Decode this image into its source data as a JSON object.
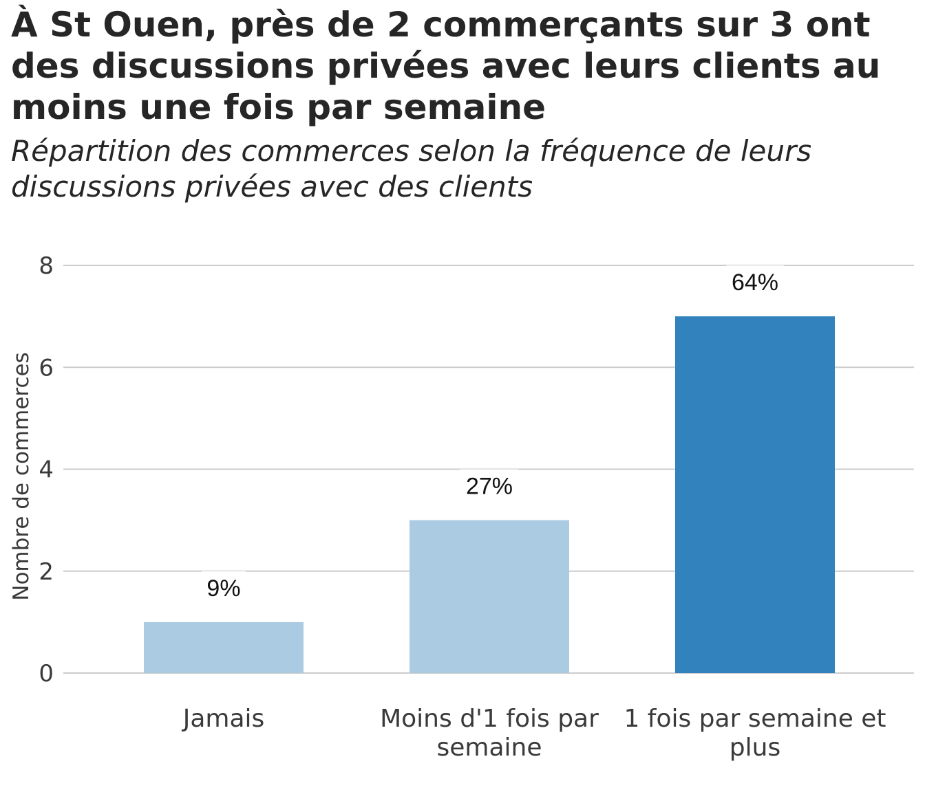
{
  "chart_data": {
    "type": "bar",
    "title": "À St Ouen, près de 2 commerçants sur 3 ont des discussions privées avec leurs clients au moins une fois par semaine",
    "subtitle": "Répartition des commerces selon la fréquence de leurs discussions privées avec des clients",
    "xlabel": "",
    "ylabel": "Nombre de commerces",
    "ylim": [
      0,
      8
    ],
    "yticks": [
      0,
      2,
      4,
      6,
      8
    ],
    "grid": true,
    "categories": [
      "Jamais",
      "Moins d'1 fois par semaine",
      "1 fois par semaine et plus"
    ],
    "category_lines": [
      [
        "Jamais"
      ],
      [
        "Moins d'1 fois par",
        "semaine"
      ],
      [
        "1 fois par semaine et",
        "plus"
      ]
    ],
    "values": [
      1,
      3,
      7
    ],
    "data_labels": [
      "9%",
      "27%",
      "64%"
    ],
    "colors": [
      "#abcbe3",
      "#abcbe3",
      "#3282bd"
    ]
  }
}
